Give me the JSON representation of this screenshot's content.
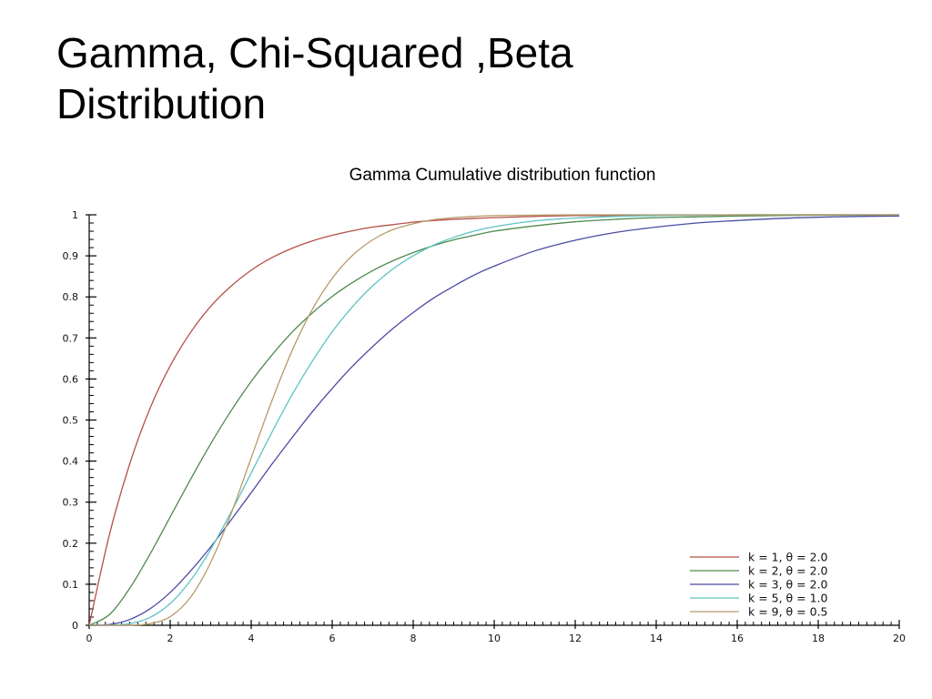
{
  "slide": {
    "title_line1": "Gamma, Chi-Squared ,Beta",
    "title_line2": "Distribution"
  },
  "chart_data": {
    "type": "line",
    "title": "Gamma Cumulative distribution function",
    "xlabel": "",
    "ylabel": "",
    "xlim": [
      0,
      20
    ],
    "ylim": [
      0,
      1
    ],
    "x_ticks": [
      0,
      2,
      4,
      6,
      8,
      10,
      12,
      14,
      16,
      18,
      20
    ],
    "y_ticks": [
      0,
      0.1,
      0.2,
      0.3,
      0.4,
      0.5,
      0.6,
      0.7,
      0.8,
      0.9,
      1
    ],
    "grid": false,
    "legend_position": "bottom-right",
    "x": [
      0,
      0.5,
      1,
      1.5,
      2,
      2.5,
      3,
      3.5,
      4,
      4.5,
      5,
      5.5,
      6,
      6.5,
      7,
      7.5,
      8,
      8.5,
      9,
      9.5,
      10,
      11,
      12,
      13,
      14,
      15,
      16,
      17,
      18,
      19,
      20
    ],
    "series": [
      {
        "name": "k = 1, θ = 2.0",
        "color": "#b5504a",
        "values": [
          0,
          0.221,
          0.393,
          0.528,
          0.632,
          0.713,
          0.777,
          0.826,
          0.865,
          0.895,
          0.918,
          0.936,
          0.95,
          0.961,
          0.97,
          0.976,
          0.982,
          0.986,
          0.989,
          0.991,
          0.993,
          0.996,
          0.998,
          0.998,
          0.999,
          0.999,
          1,
          1,
          1,
          1,
          1
        ]
      },
      {
        "name": "k = 2, θ = 2.0",
        "color": "#4e8a4e",
        "values": [
          0,
          0.026,
          0.09,
          0.173,
          0.264,
          0.355,
          0.442,
          0.522,
          0.594,
          0.657,
          0.713,
          0.76,
          0.801,
          0.835,
          0.864,
          0.888,
          0.908,
          0.925,
          0.939,
          0.95,
          0.96,
          0.973,
          0.983,
          0.989,
          0.993,
          0.995,
          0.997,
          0.998,
          0.999,
          0.999,
          1
        ]
      },
      {
        "name": "k = 3, θ = 2.0",
        "color": "#4b4ba3",
        "values": [
          0,
          0.002,
          0.014,
          0.04,
          0.08,
          0.132,
          0.191,
          0.256,
          0.323,
          0.391,
          0.456,
          0.519,
          0.577,
          0.631,
          0.679,
          0.723,
          0.762,
          0.797,
          0.826,
          0.853,
          0.875,
          0.912,
          0.938,
          0.957,
          0.97,
          0.98,
          0.986,
          0.991,
          0.994,
          0.996,
          0.997
        ]
      },
      {
        "name": "k = 5, θ = 1.0",
        "color": "#5ec2c2",
        "values": [
          0,
          0.0002,
          0.004,
          0.019,
          0.053,
          0.109,
          0.185,
          0.275,
          0.371,
          0.468,
          0.56,
          0.642,
          0.715,
          0.776,
          0.827,
          0.868,
          0.9,
          0.926,
          0.945,
          0.96,
          0.971,
          0.985,
          0.992,
          0.996,
          0.998,
          0.999,
          1,
          1,
          1,
          1,
          1
        ]
      },
      {
        "name": "k = 9, θ = 0.5",
        "color": "#b89a6a",
        "values": [
          0,
          0,
          0.0002,
          0.004,
          0.021,
          0.068,
          0.153,
          0.271,
          0.408,
          0.544,
          0.667,
          0.768,
          0.845,
          0.901,
          0.939,
          0.964,
          0.978,
          0.988,
          0.993,
          0.996,
          0.998,
          0.999,
          1,
          1,
          1,
          1,
          1,
          1,
          1,
          1,
          1
        ]
      }
    ]
  }
}
